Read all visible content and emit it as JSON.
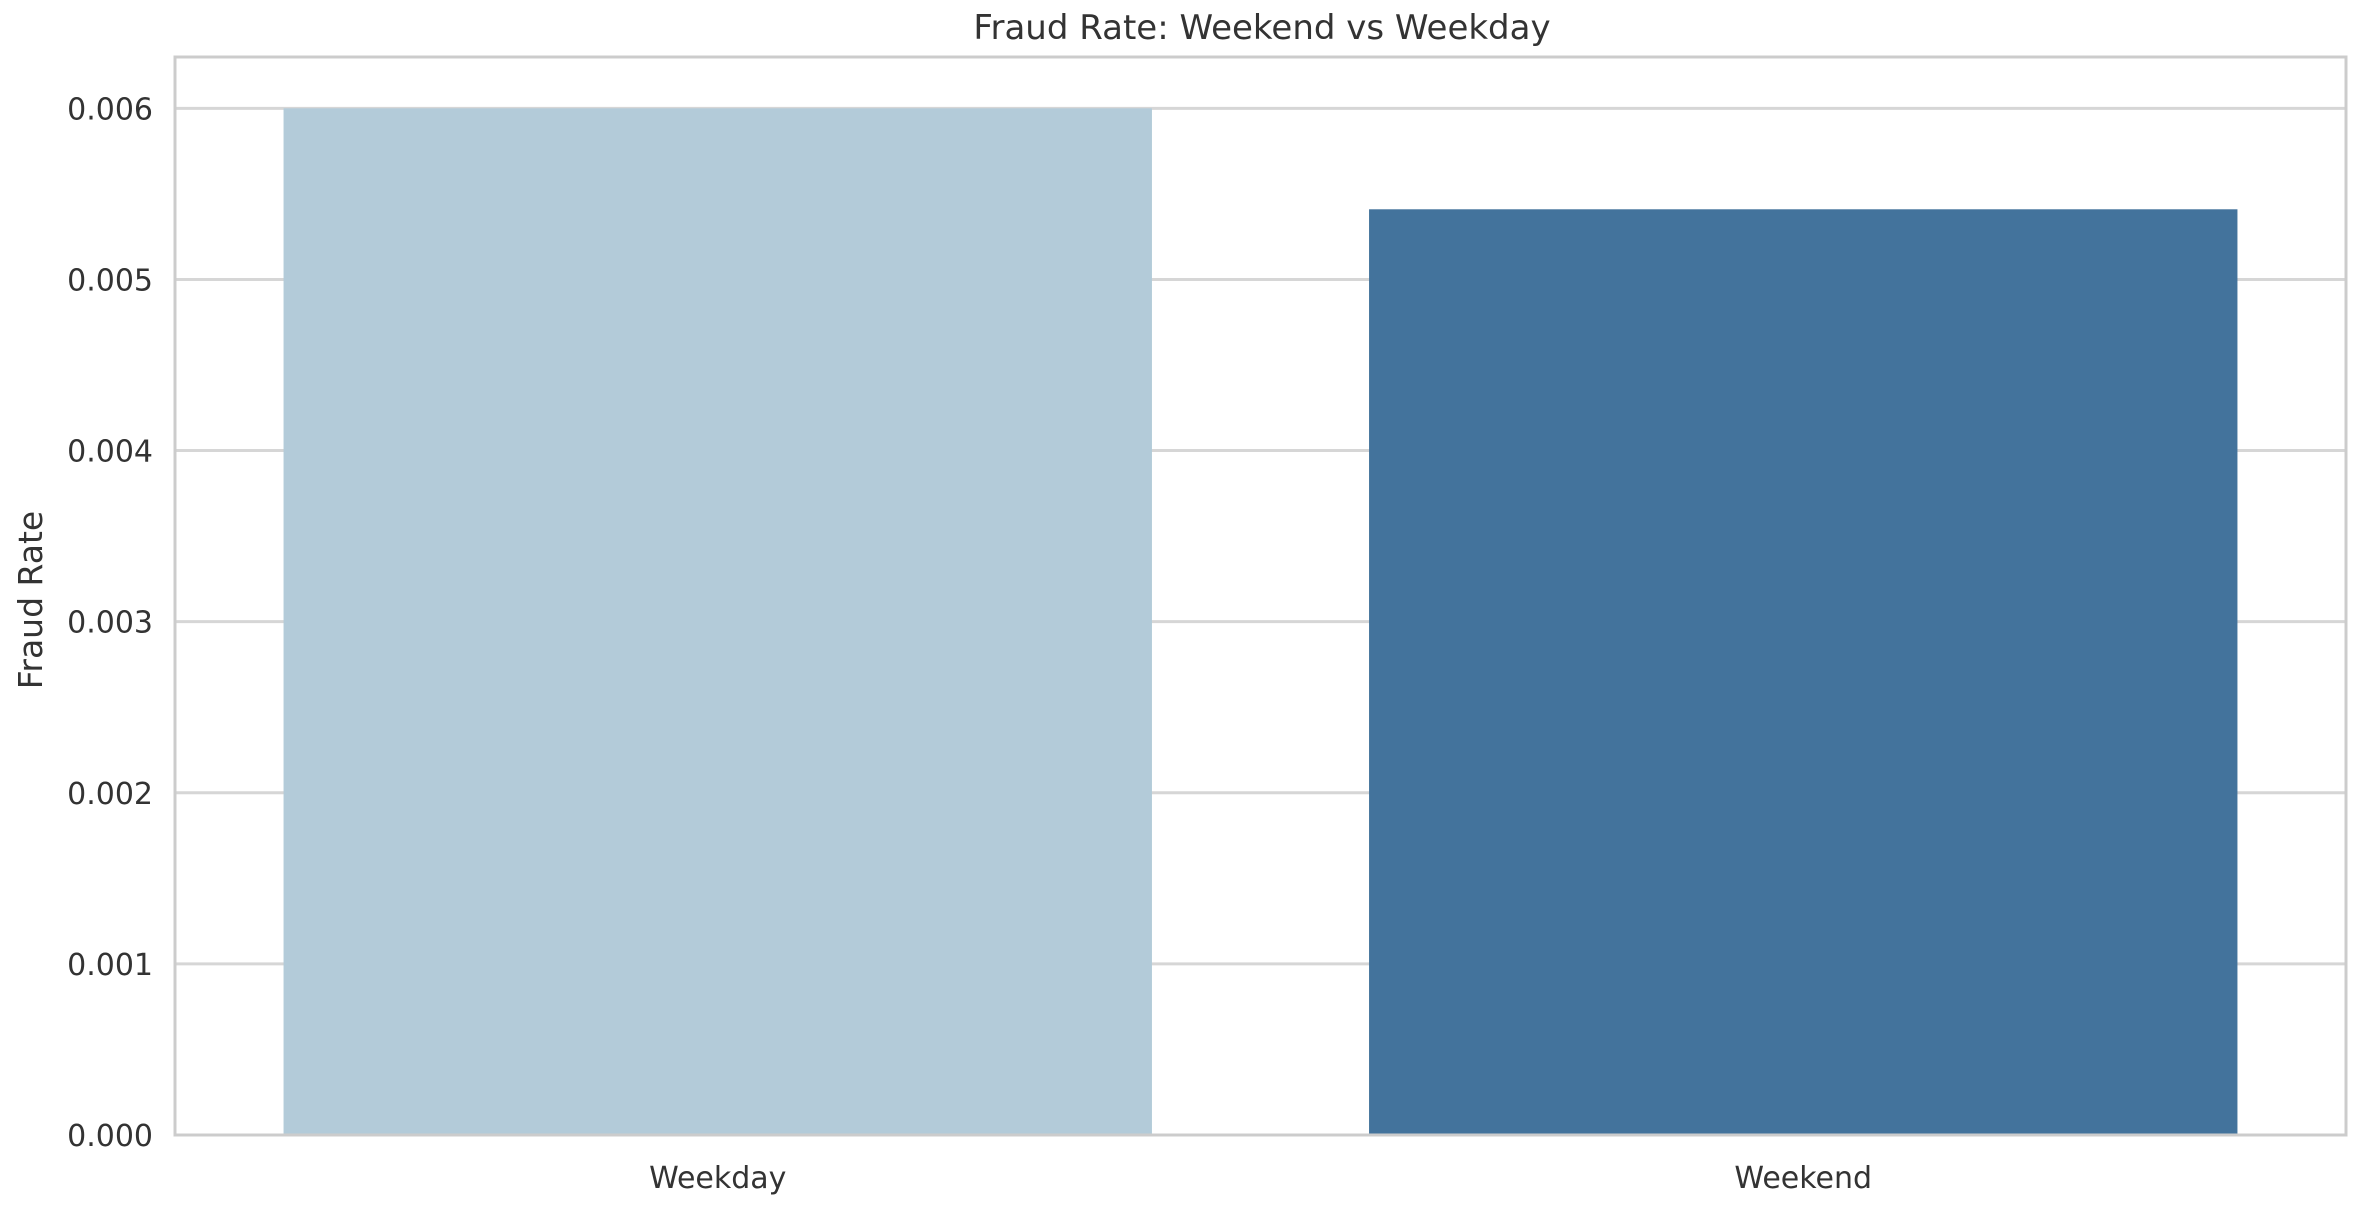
{
  "chart_data": {
    "type": "bar",
    "title": "Fraud Rate: Weekend vs Weekday",
    "xlabel": "",
    "ylabel": "Fraud Rate",
    "categories": [
      "Weekday",
      "Weekend"
    ],
    "values": [
      0.006,
      0.00541
    ],
    "ylim": [
      0,
      0.0063
    ],
    "yticks": [
      "0.000",
      "0.001",
      "0.002",
      "0.003",
      "0.004",
      "0.005",
      "0.006"
    ],
    "bar_colors": [
      "#b3cbd9",
      "#43739c"
    ],
    "grid": "horizontal",
    "legend": "none"
  }
}
